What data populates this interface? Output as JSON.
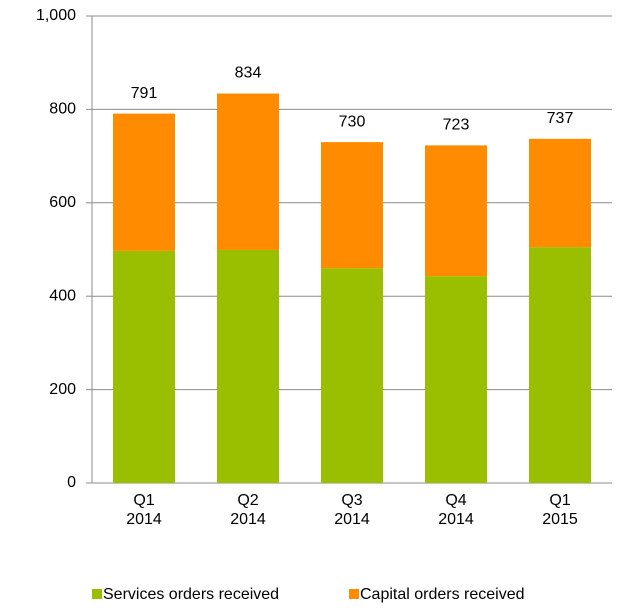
{
  "chart_data": {
    "type": "stacked_bar",
    "categories": [
      [
        "Q1",
        "2014"
      ],
      [
        "Q2",
        "2014"
      ],
      [
        "Q3",
        "2014"
      ],
      [
        "Q4",
        "2014"
      ],
      [
        "Q1",
        "2015"
      ]
    ],
    "series": [
      {
        "name": "Services orders received",
        "color": "#99bf00",
        "values": [
          497,
          499,
          460,
          443,
          505
        ]
      },
      {
        "name": "Capital orders received",
        "color": "#ff8c00",
        "values": [
          294,
          335,
          270,
          280,
          232
        ]
      }
    ],
    "totals": [
      791,
      834,
      730,
      723,
      737
    ],
    "ylim": [
      0,
      1000
    ],
    "yticks": [
      0,
      200,
      400,
      600,
      800,
      {
        "value": 1000,
        "label": "1,000"
      }
    ],
    "grid": true,
    "legend": "bottom"
  }
}
